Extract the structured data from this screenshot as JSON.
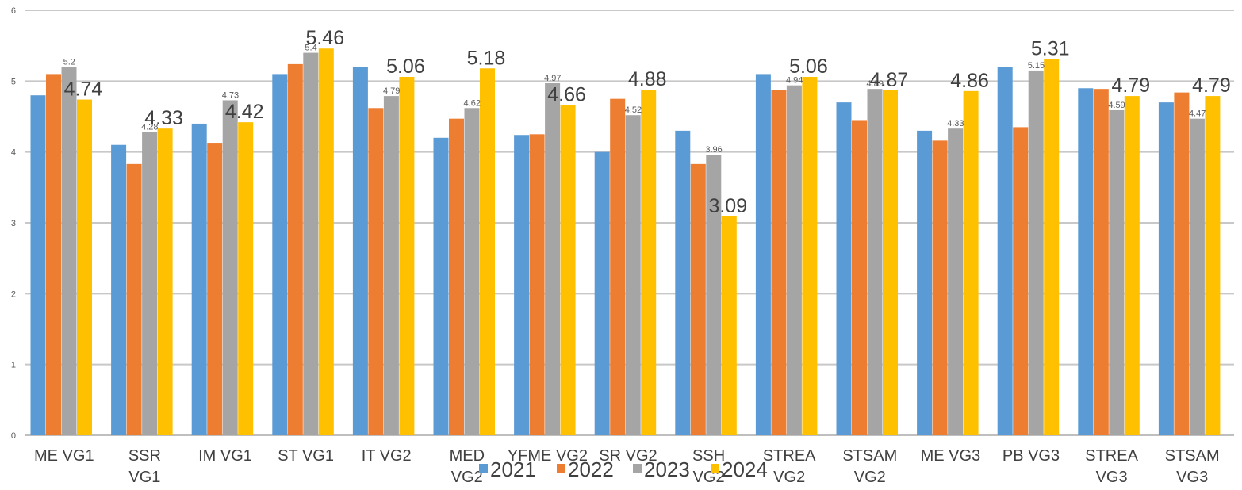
{
  "chart_data": {
    "type": "bar",
    "title": "",
    "xlabel": "",
    "ylabel": "",
    "ylim": [
      0,
      6
    ],
    "yticks": [
      0,
      1,
      2,
      3,
      4,
      5,
      6
    ],
    "grid": true,
    "legend_position": "bottom",
    "categories": [
      [
        "ME VG1"
      ],
      [
        "SSR",
        "VG1"
      ],
      [
        "IM VG1"
      ],
      [
        "ST VG1"
      ],
      [
        "IT VG2"
      ],
      [
        "MED",
        "VG2"
      ],
      [
        "YFME VG2"
      ],
      [
        "SR VG2"
      ],
      [
        "SSH",
        "VG2"
      ],
      [
        "STREA",
        "VG2"
      ],
      [
        "STSAM",
        "VG2"
      ],
      [
        "ME VG3"
      ],
      [
        "PB VG3"
      ],
      [
        "STREA",
        "VG3"
      ],
      [
        "STSAM",
        "VG3"
      ]
    ],
    "series": [
      {
        "name": "2021",
        "color": "#5B9BD5",
        "values": [
          4.8,
          4.1,
          4.4,
          5.1,
          5.2,
          4.2,
          4.24,
          4.0,
          4.3,
          5.1,
          4.7,
          4.3,
          5.2,
          4.9,
          4.7
        ],
        "labels": [
          "",
          "",
          "",
          "",
          "",
          "",
          "",
          "",
          "",
          "",
          "",
          "",
          "",
          "",
          ""
        ]
      },
      {
        "name": "2022",
        "color": "#ED7D31",
        "values": [
          5.1,
          3.83,
          4.13,
          5.24,
          4.62,
          4.47,
          4.25,
          4.75,
          3.83,
          4.87,
          4.45,
          4.16,
          4.35,
          4.89,
          4.84
        ],
        "labels": [
          "",
          "",
          "",
          "",
          "",
          "",
          "",
          "",
          "",
          "",
          "",
          "",
          "",
          "",
          ""
        ]
      },
      {
        "name": "2023",
        "color": "#A5A5A5",
        "values": [
          5.2,
          4.28,
          4.73,
          5.4,
          4.79,
          4.62,
          4.97,
          4.52,
          3.96,
          4.94,
          4.89,
          4.33,
          5.15,
          4.59,
          4.47
        ],
        "labels": [
          "5.2",
          "4.28",
          "4.73",
          "5.4",
          "4.79",
          "4.62",
          "4.97",
          "4.52",
          "3.96",
          "4.94",
          "4.89",
          "4.33",
          "5.15",
          "4.59",
          "4.47"
        ]
      },
      {
        "name": "2024",
        "color": "#FFC000",
        "values": [
          4.74,
          4.33,
          4.42,
          5.46,
          5.06,
          5.18,
          4.66,
          4.88,
          3.09,
          5.06,
          4.87,
          4.86,
          5.31,
          4.79,
          4.79
        ],
        "labels": [
          "4.74",
          "4.33",
          "4.42",
          "5.46",
          "5.06",
          "5.18",
          "4.66",
          "4.88",
          "3.09",
          "5.06",
          "4.87",
          "4.86",
          "5.31",
          "4.79",
          "4.79"
        ]
      }
    ]
  }
}
